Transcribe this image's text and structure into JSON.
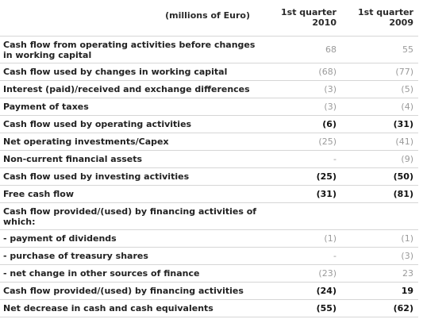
{
  "header": {
    "title": "(millions of Euro)",
    "col1_line1": "1st quarter",
    "col1_line2": "2010",
    "col2_line1": "1st quarter",
    "col2_line2": "2009"
  },
  "rows": [
    {
      "label": "Cash flow from operating activities before changes in working capital",
      "v2010": "68",
      "v2009": "55"
    },
    {
      "label": "Cash flow used by changes in working capital",
      "v2010": "(68)",
      "v2009": "(77)"
    },
    {
      "label": "Interest (paid)/received and exchange differences",
      "v2010": "(3)",
      "v2009": "(5)"
    },
    {
      "label": "Payment of taxes",
      "v2010": "(3)",
      "v2009": "(4)"
    },
    {
      "label": "Cash flow used by operating activities",
      "v2010": "(6)",
      "v2009": "(31)"
    },
    {
      "label": "Net operating investments/Capex",
      "v2010": "(25)",
      "v2009": "(41)"
    },
    {
      "label": "Non-current financial assets",
      "v2010": "-",
      "v2009": "(9)"
    },
    {
      "label": "Cash flow used by investing activities",
      "v2010": "(25)",
      "v2009": "(50)"
    },
    {
      "label": "Free cash flow",
      "v2010": "(31)",
      "v2009": "(81)"
    },
    {
      "label": "Cash flow provided/(used) by financing activities of which:",
      "v2010": "",
      "v2009": ""
    },
    {
      "label": "- payment of dividends",
      "v2010": "(1)",
      "v2009": "(1)"
    },
    {
      "label": "- purchase of treasury shares",
      "v2010": "-",
      "v2009": "(3)"
    },
    {
      "label": "- net change in other sources of finance",
      "v2010": "(23)",
      "v2009": "23"
    },
    {
      "label": "Cash flow provided/(used) by financing activities",
      "v2010": "(24)",
      "v2009": "19"
    },
    {
      "label": "Net decrease in cash and cash equivalents",
      "v2010": "(55)",
      "v2009": "(62)"
    }
  ]
}
